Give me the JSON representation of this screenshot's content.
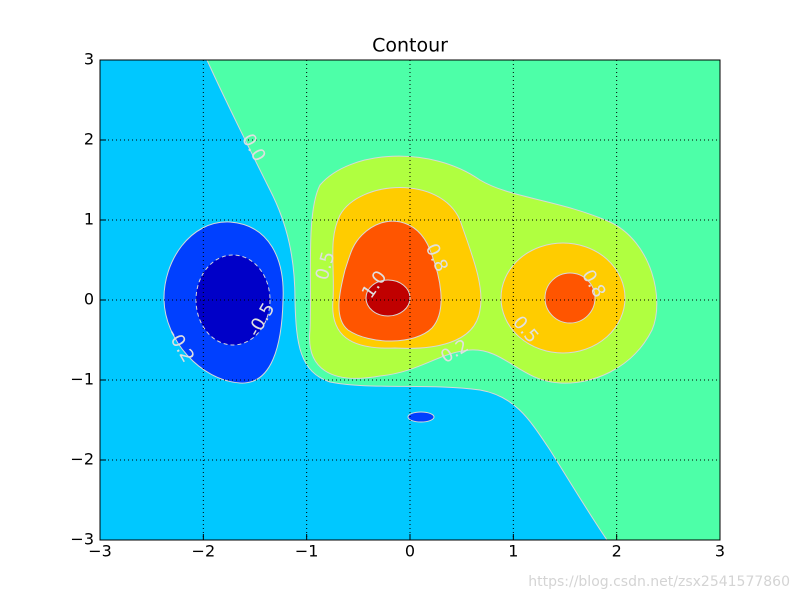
{
  "chart_data": {
    "type": "contour",
    "title": "Contour",
    "levels": [
      -0.5,
      -0.2,
      0,
      0.2,
      0.5,
      0.8,
      1.0
    ],
    "level_labels": [
      "-0.5",
      "-0.2",
      "0.0",
      "0.2",
      "0.5",
      "0.8",
      "1.0"
    ],
    "band_colors": [
      "#0000c8",
      "#0040ff",
      "#00c8ff",
      "#4dffa8",
      "#b0ff40",
      "#ffcc00",
      "#ff5500",
      "#c00000"
    ],
    "xlim": [
      -3,
      3
    ],
    "ylim": [
      -3,
      3
    ],
    "xticks": [
      {
        "value": -3,
        "label": "−3"
      },
      {
        "value": -2,
        "label": "−2"
      },
      {
        "value": -1,
        "label": "−1"
      },
      0,
      1,
      2,
      3
    ],
    "yticks": [
      {
        "value": -3,
        "label": "−3"
      },
      {
        "value": -2,
        "label": "−2"
      },
      {
        "value": -1,
        "label": "−1"
      },
      0,
      1,
      2,
      3
    ],
    "grid": true,
    "watermark": "https://blog.csdn.net/zsx2541577860"
  }
}
